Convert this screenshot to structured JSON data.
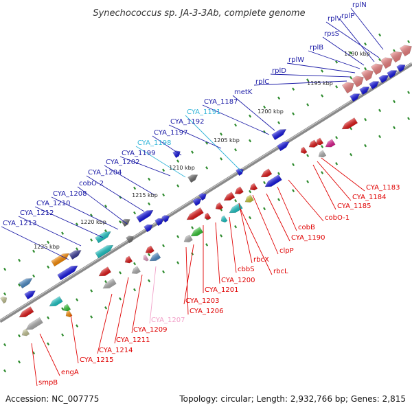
{
  "title": "Synechococcus sp. JA-3-3Ab, complete genome",
  "accession": "Accession: NC_007775",
  "summary": "Topology: circular; Length: 2,932,766 bp; Genes: 2,815",
  "colors": {
    "backbone": "#8a8a8a",
    "plus_label": "#1a1aa6",
    "minus_label": "#e00000",
    "highlight_plus_label": "#33b5d9",
    "highlight_minus_label": "#f2a0c8",
    "dots": "#2e8b2e"
  },
  "ticks": [
    "1190 kbp",
    "1195 kbp",
    "1200 kbp",
    "1205 kbp",
    "1210 kbp",
    "1215 kbp",
    "1220 kbp",
    "1225 kbp"
  ],
  "labels_plus": [
    "rplN",
    "rplV",
    "rplP",
    "rpsS",
    "rplB",
    "rplW",
    "rplD",
    "rplC",
    "metK",
    "CYA_1187",
    "CYA_1191",
    "CYA_1192",
    "CYA_1197",
    "CYA_1198",
    "CYA_1199",
    "CYA_1202",
    "CYA_1204",
    "cobO-2",
    "CYA_1208",
    "CYA_1210",
    "CYA_1212",
    "CYA_1213"
  ],
  "labels_minus": [
    "CYA_1183",
    "CYA_1184",
    "CYA_1185",
    "cobO-1",
    "cobB",
    "CYA_1190",
    "clpP",
    "rbcX",
    "rbcL",
    "cbbS",
    "CYA_1200",
    "CYA_1201",
    "CYA_1203",
    "CYA_1206",
    "CYA_1207",
    "CYA_1209",
    "CYA_1211",
    "CYA_1214",
    "CYA_1215",
    "engA",
    "smpB"
  ]
}
